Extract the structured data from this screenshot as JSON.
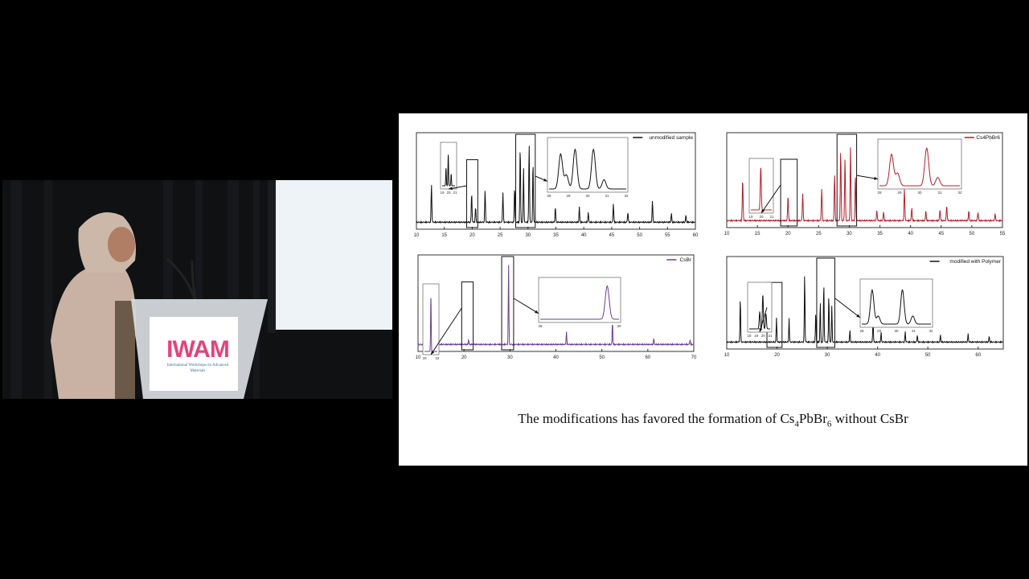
{
  "video": {
    "podium_logo_text": "IWAM",
    "podium_subtitle": "International Workshops on Advanced Materials",
    "colors": {
      "curtain": "#101113",
      "screen": "#f2f5f8",
      "podium": "#d9dde2"
    }
  },
  "slide": {
    "caption": {
      "prefix": "The modifications has favored the formation of ",
      "formula_parts": [
        "Cs",
        "4",
        "PbBr",
        "6"
      ],
      "suffix": " without CsBr"
    }
  },
  "chart_data": [
    {
      "type": "line",
      "legend": "unmodified sample",
      "color": "#111111",
      "xlim": [
        10,
        60
      ],
      "xticks": [
        10,
        15,
        20,
        25,
        30,
        35,
        40,
        45,
        50,
        55,
        60
      ],
      "peaks": [
        [
          12.7,
          0.45
        ],
        [
          19.9,
          0.35
        ],
        [
          20.6,
          0.18
        ],
        [
          22.3,
          0.38
        ],
        [
          25.5,
          0.35
        ],
        [
          27.6,
          0.42
        ],
        [
          28.6,
          0.9
        ],
        [
          29.2,
          0.65
        ],
        [
          30.2,
          0.92
        ],
        [
          30.9,
          0.72
        ],
        [
          34.9,
          0.18
        ],
        [
          39.2,
          0.18
        ],
        [
          40.8,
          0.12
        ],
        [
          45.3,
          0.22
        ],
        [
          47.9,
          0.12
        ],
        [
          52.3,
          0.25
        ],
        [
          55.7,
          0.1
        ],
        [
          58.3,
          0.08
        ]
      ],
      "insets": [
        {
          "xticks": [
            "19",
            "20",
            "21"
          ],
          "peaks": [
            [
              19.6,
              0.45
            ],
            [
              19.95,
              0.8
            ],
            [
              20.4,
              0.3
            ]
          ]
        },
        {
          "xticks": [
            "28",
            "29",
            "30",
            "31",
            "32"
          ],
          "peaks": [
            [
              28.6,
              0.75
            ],
            [
              28.9,
              0.3
            ],
            [
              29.35,
              0.85
            ],
            [
              30.3,
              0.85
            ],
            [
              30.85,
              0.2
            ]
          ]
        }
      ]
    },
    {
      "type": "line",
      "legend": "Cs4PbBr6",
      "color": "#b0202a",
      "xlim": [
        10,
        55
      ],
      "xticks": [
        10,
        15,
        20,
        25,
        30,
        35,
        40,
        45,
        50,
        55
      ],
      "peaks": [
        [
          12.6,
          0.5
        ],
        [
          20.0,
          0.3
        ],
        [
          22.4,
          0.33
        ],
        [
          25.5,
          0.38
        ],
        [
          27.6,
          0.55
        ],
        [
          28.6,
          0.85
        ],
        [
          29.3,
          0.75
        ],
        [
          30.2,
          0.9
        ],
        [
          31.0,
          0.55
        ],
        [
          34.5,
          0.12
        ],
        [
          35.6,
          0.1
        ],
        [
          39.0,
          0.38
        ],
        [
          40.2,
          0.15
        ],
        [
          42.5,
          0.12
        ],
        [
          44.8,
          0.13
        ],
        [
          45.9,
          0.18
        ],
        [
          49.5,
          0.12
        ],
        [
          51.0,
          0.1
        ],
        [
          53.8,
          0.08
        ]
      ],
      "insets": [
        {
          "xticks": [
            "19",
            "20",
            "21"
          ],
          "peaks": [
            [
              19.95,
              0.9
            ]
          ]
        },
        {
          "xticks": [
            "28",
            "29",
            "30",
            "31",
            "32"
          ],
          "peaks": [
            [
              28.6,
              0.75
            ],
            [
              28.9,
              0.3
            ],
            [
              30.35,
              0.9
            ],
            [
              30.9,
              0.2
            ]
          ]
        }
      ]
    },
    {
      "type": "line",
      "legend": "CsBr",
      "color": "#6a3d8f",
      "xlim": [
        10,
        70
      ],
      "xticks": [
        10,
        20,
        30,
        40,
        50,
        60,
        70
      ],
      "peaks": [
        [
          21.0,
          0.06
        ],
        [
          29.7,
          0.95
        ],
        [
          42.3,
          0.16
        ],
        [
          52.3,
          0.28
        ],
        [
          61.3,
          0.07
        ],
        [
          69.2,
          0.06
        ]
      ],
      "insets": [
        {
          "xticks": [
            "20",
            "22"
          ],
          "peaks": [
            [
              21.0,
              0.85
            ]
          ]
        },
        {
          "xticks": [
            "28",
            "30"
          ],
          "peaks": [
            [
              29.7,
              0.9
            ]
          ]
        }
      ]
    },
    {
      "type": "line",
      "legend": "modified with Polymer",
      "color": "#111111",
      "xlim": [
        10,
        65
      ],
      "xticks": [
        10,
        20,
        30,
        40,
        50,
        60
      ],
      "peaks": [
        [
          12.7,
          0.55
        ],
        [
          19.9,
          0.3
        ],
        [
          22.4,
          0.3
        ],
        [
          25.5,
          0.85
        ],
        [
          27.7,
          0.35
        ],
        [
          28.6,
          0.5
        ],
        [
          29.3,
          0.75
        ],
        [
          30.3,
          0.6
        ],
        [
          30.9,
          0.45
        ],
        [
          34.5,
          0.15
        ],
        [
          39.1,
          0.28
        ],
        [
          40.7,
          0.12
        ],
        [
          45.5,
          0.13
        ],
        [
          47.9,
          0.09
        ],
        [
          52.5,
          0.09
        ],
        [
          58.0,
          0.1
        ],
        [
          62.2,
          0.07
        ]
      ],
      "insets": [
        {
          "xticks": [
            "18",
            "19",
            "20",
            "21"
          ],
          "peaks": [
            [
              19.5,
              0.4
            ],
            [
              19.95,
              0.8
            ],
            [
              20.4,
              0.35
            ]
          ]
        },
        {
          "xticks": [
            "28",
            "29",
            "30",
            "31",
            "32"
          ],
          "peaks": [
            [
              28.6,
              0.85
            ],
            [
              28.95,
              0.2
            ],
            [
              30.35,
              0.85
            ],
            [
              30.95,
              0.2
            ]
          ]
        }
      ]
    }
  ]
}
